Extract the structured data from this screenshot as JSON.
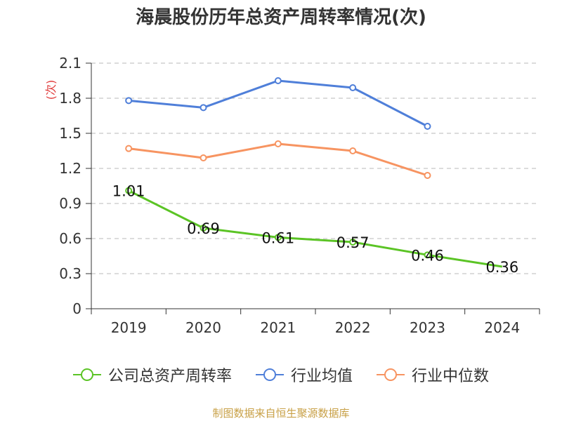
{
  "chart_data": {
    "type": "line",
    "title": "海晨股份历年总资产周转率情况(次)",
    "ylabel": "(次)",
    "xlabel": "",
    "ylim": [
      0,
      2.1
    ],
    "yticks": [
      "0",
      "0.3",
      "0.6",
      "0.9",
      "1.2",
      "1.5",
      "1.8",
      "2.1"
    ],
    "grid": true,
    "legend_position": "bottom",
    "categories": [
      "2019",
      "2020",
      "2021",
      "2022",
      "2023",
      "2024"
    ],
    "series": [
      {
        "name": "公司总资产周转率",
        "color": "#5bc425",
        "values": [
          1.01,
          0.69,
          0.61,
          0.57,
          0.46,
          0.36
        ],
        "labels": [
          "1.01",
          "0.69",
          "0.61",
          "0.57",
          "0.46",
          "0.36"
        ]
      },
      {
        "name": "行业均值",
        "color": "#4f7fd9",
        "values": [
          1.78,
          1.72,
          1.95,
          1.89,
          1.56,
          null
        ]
      },
      {
        "name": "行业中位数",
        "color": "#f79461",
        "values": [
          1.37,
          1.29,
          1.41,
          1.35,
          1.14,
          null
        ]
      }
    ]
  },
  "source": "制图数据来自恒生聚源数据库"
}
